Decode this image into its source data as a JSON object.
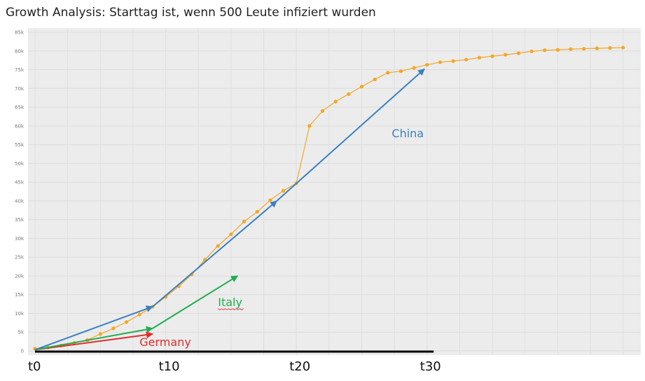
{
  "title": "Growth Analysis: Starttag ist, wenn 500 Leute infiziert wurden",
  "chart_data": {
    "type": "line",
    "title": "Growth Analysis: Starttag ist, wenn 500 Leute infiziert wurden",
    "ylim": [
      0,
      85000
    ],
    "y_ticks": [
      "0",
      "5k",
      "10k",
      "15k",
      "20k",
      "25k",
      "30k",
      "35k",
      "40k",
      "45k",
      "50k",
      "55k",
      "60k",
      "65k",
      "70k",
      "75k",
      "80k",
      "85k"
    ],
    "x_labels": [
      "t0",
      "t10",
      "t20",
      "t30"
    ],
    "series": [
      {
        "color": "#f5a623",
        "x": [
          0,
          1,
          2,
          3,
          4,
          5,
          6,
          7,
          8,
          9,
          10,
          11,
          12,
          13,
          14,
          15,
          16,
          17,
          18,
          19,
          20,
          21,
          22,
          23,
          24,
          25,
          26,
          27,
          28,
          29,
          30,
          31,
          32,
          33,
          34,
          35,
          36,
          37,
          38,
          39,
          40,
          41,
          42,
          43,
          44,
          45
        ],
        "values": [
          600,
          900,
          1400,
          2100,
          2900,
          4500,
          6000,
          7700,
          9700,
          11800,
          14400,
          17200,
          20400,
          24300,
          28000,
          31100,
          34500,
          37100,
          40200,
          42700,
          44700,
          60000,
          64000,
          66500,
          68500,
          70500,
          72400,
          74200,
          74600,
          75500,
          76300,
          77000,
          77300,
          77700,
          78200,
          78600,
          79000,
          79400,
          79900,
          80200,
          80300,
          80500,
          80600,
          80700,
          80800,
          80900
        ]
      }
    ],
    "annotations": [
      {
        "label": "China",
        "color": "#3a80c4",
        "points": [
          [
            0,
            300
          ],
          [
            9,
            11800
          ],
          [
            18.5,
            40000
          ],
          [
            29.8,
            75200
          ]
        ]
      },
      {
        "label": "Italy",
        "color": "#1fae4f",
        "points": [
          [
            0,
            300
          ],
          [
            9,
            6000
          ],
          [
            15.5,
            20000
          ]
        ]
      },
      {
        "label": "Germany",
        "color": "#e22b2b",
        "points": [
          [
            0,
            300
          ],
          [
            9,
            4500
          ]
        ]
      }
    ],
    "annotation_label_positions": {
      "China": {
        "x": 27.3,
        "y": 57000
      },
      "Italy": {
        "x": 14,
        "y": 12000
      },
      "Germany": {
        "x": 8,
        "y": 1300
      }
    },
    "grid": true
  }
}
